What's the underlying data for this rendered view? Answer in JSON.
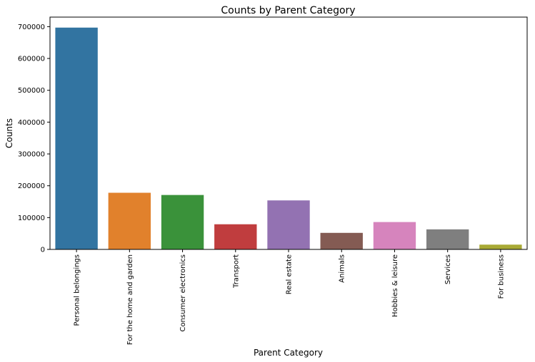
{
  "chart_data": {
    "type": "bar",
    "title": "Counts by Parent Category",
    "xlabel": "Parent Category",
    "ylabel": "Counts",
    "categories": [
      "Personal belongings",
      "For the home and garden",
      "Consumer electronics",
      "Transport",
      "Real estate",
      "Animals",
      "Hobbies & leisure",
      "Services",
      "For business"
    ],
    "values": [
      697000,
      178000,
      171000,
      79000,
      154000,
      52000,
      86000,
      63000,
      15000
    ],
    "colors": [
      "#3274a1",
      "#e1812c",
      "#3a923a",
      "#c03d3e",
      "#9372b2",
      "#845b53",
      "#d684bd",
      "#7f7f7f",
      "#a9aa35"
    ],
    "ylim": [
      0,
      730000
    ],
    "yticks": [
      0,
      100000,
      200000,
      300000,
      400000,
      500000,
      600000,
      700000
    ],
    "ytick_labels": [
      "0",
      "100000",
      "200000",
      "300000",
      "400000",
      "500000",
      "600000",
      "700000"
    ],
    "grid": false,
    "legend": "none"
  }
}
